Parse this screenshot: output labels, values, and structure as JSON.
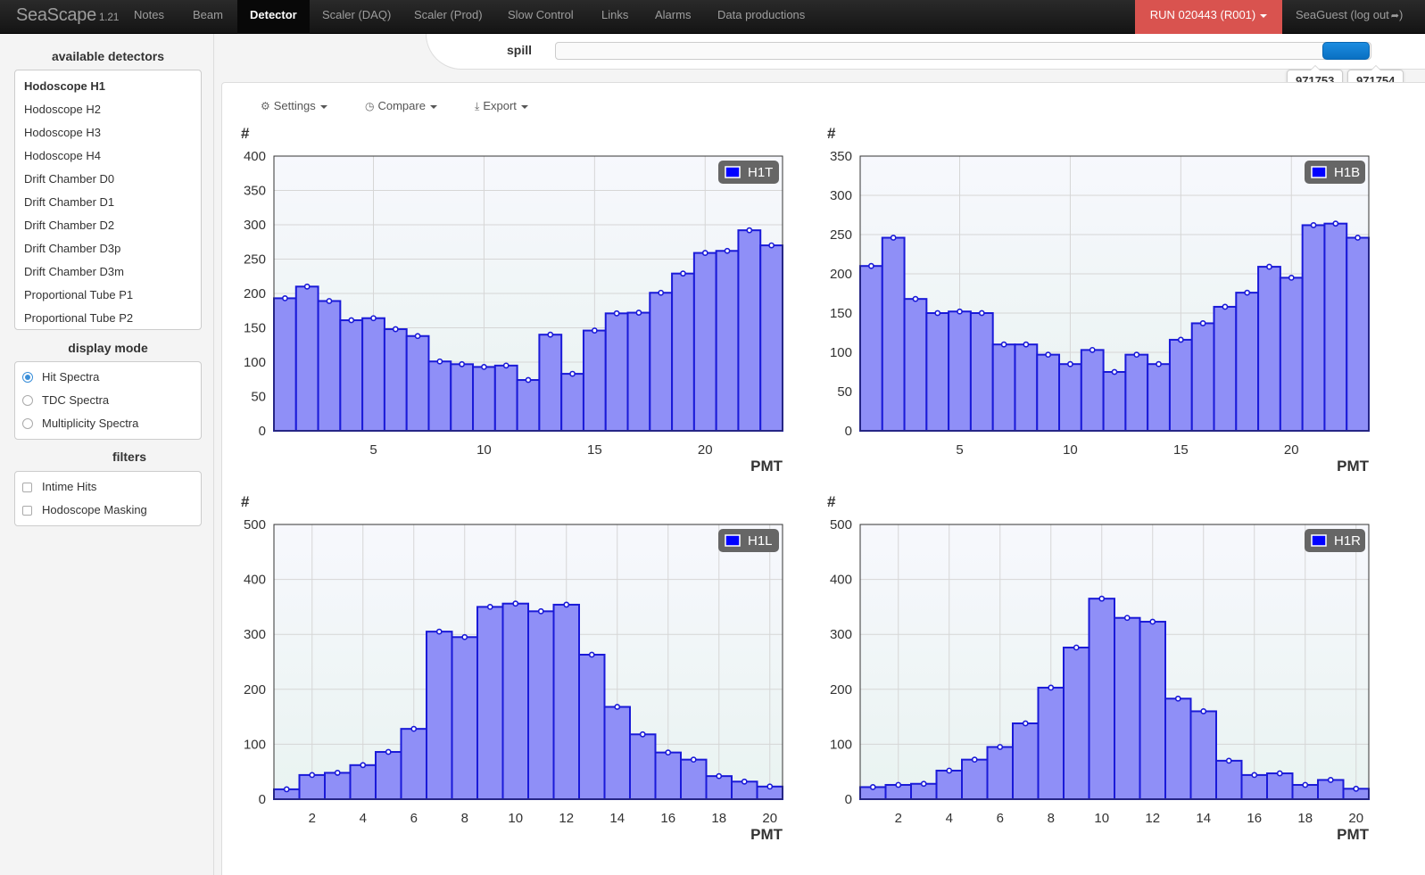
{
  "nav": {
    "brand": "SeaScape",
    "version": "1.21",
    "items": [
      "Notes",
      "Beam",
      "Detector",
      "Scaler (DAQ)",
      "Scaler (Prod)",
      "Slow Control",
      "Links",
      "Alarms",
      "Data productions"
    ],
    "active": "Detector",
    "run": "RUN 020443 (R001)",
    "user": "SeaGuest (log out"
  },
  "sidebar": {
    "detectors_title": "available detectors",
    "detectors": [
      "Hodoscope H1",
      "Hodoscope H2",
      "Hodoscope H3",
      "Hodoscope H4",
      "Drift Chamber D0",
      "Drift Chamber D1",
      "Drift Chamber D2",
      "Drift Chamber D3p",
      "Drift Chamber D3m",
      "Proportional Tube P1",
      "Proportional Tube P2"
    ],
    "mode_title": "display mode",
    "modes": [
      "Hit Spectra",
      "TDC Spectra",
      "Multiplicity Spectra"
    ],
    "filters_title": "filters",
    "filters": [
      "Intime Hits",
      "Hodoscope Masking"
    ]
  },
  "spill": {
    "label": "spill",
    "low": "971753",
    "high": "971754"
  },
  "toolbar": {
    "settings": "Settings",
    "compare": "Compare",
    "export": "Export"
  },
  "colors": {
    "bar_fill": "#8f8ff7",
    "bar_stroke": "#1a1ad8",
    "legend_bg": "#666666",
    "legend_swatch": "#0000ff"
  },
  "chart_data": [
    {
      "type": "bar",
      "series": [
        {
          "name": "H1T",
          "values": [
            193,
            210,
            189,
            161,
            164,
            148,
            138,
            101,
            97,
            93,
            95,
            74,
            140,
            83,
            146,
            171,
            172,
            201,
            229,
            259,
            262,
            292,
            270
          ]
        }
      ],
      "x": [
        1,
        2,
        3,
        4,
        5,
        6,
        7,
        8,
        9,
        10,
        11,
        12,
        13,
        14,
        15,
        16,
        17,
        18,
        19,
        20,
        21,
        22,
        23
      ],
      "xlabel": "PMT",
      "ylabel": "#",
      "ylim": [
        0,
        400
      ],
      "yticks": [
        0,
        50,
        100,
        150,
        200,
        250,
        300,
        350,
        400
      ],
      "xticks": [
        5,
        10,
        15,
        20
      ],
      "grid": true,
      "legend": "top-right"
    },
    {
      "type": "bar",
      "series": [
        {
          "name": "H1B",
          "values": [
            210,
            246,
            168,
            150,
            152,
            150,
            110,
            110,
            97,
            85,
            103,
            75,
            97,
            85,
            116,
            137,
            158,
            176,
            209,
            195,
            262,
            264,
            246
          ]
        }
      ],
      "x": [
        1,
        2,
        3,
        4,
        5,
        6,
        7,
        8,
        9,
        10,
        11,
        12,
        13,
        14,
        15,
        16,
        17,
        18,
        19,
        20,
        21,
        22,
        23
      ],
      "xlabel": "PMT",
      "ylabel": "#",
      "ylim": [
        0,
        350
      ],
      "yticks": [
        0,
        50,
        100,
        150,
        200,
        250,
        300,
        350
      ],
      "xticks": [
        5,
        10,
        15,
        20
      ],
      "grid": true,
      "legend": "top-right"
    },
    {
      "type": "bar",
      "series": [
        {
          "name": "H1L",
          "values": [
            18,
            44,
            48,
            62,
            86,
            128,
            305,
            295,
            350,
            356,
            342,
            354,
            263,
            168,
            118,
            85,
            72,
            42,
            32,
            23
          ]
        }
      ],
      "x": [
        1,
        2,
        3,
        4,
        5,
        6,
        7,
        8,
        9,
        10,
        11,
        12,
        13,
        14,
        15,
        16,
        17,
        18,
        19,
        20
      ],
      "xlabel": "PMT",
      "ylabel": "#",
      "ylim": [
        0,
        500
      ],
      "yticks": [
        0,
        100,
        200,
        300,
        400,
        500
      ],
      "xticks": [
        2,
        4,
        6,
        8,
        10,
        12,
        14,
        16,
        18,
        20
      ],
      "grid": true,
      "legend": "top-right"
    },
    {
      "type": "bar",
      "series": [
        {
          "name": "H1R",
          "values": [
            22,
            26,
            28,
            52,
            72,
            95,
            138,
            203,
            276,
            365,
            330,
            323,
            183,
            160,
            70,
            44,
            47,
            26,
            35,
            19
          ]
        }
      ],
      "x": [
        1,
        2,
        3,
        4,
        5,
        6,
        7,
        8,
        9,
        10,
        11,
        12,
        13,
        14,
        15,
        16,
        17,
        18,
        19,
        20
      ],
      "xlabel": "PMT",
      "ylabel": "#",
      "ylim": [
        0,
        500
      ],
      "yticks": [
        0,
        100,
        200,
        300,
        400,
        500
      ],
      "xticks": [
        2,
        4,
        6,
        8,
        10,
        12,
        14,
        16,
        18,
        20
      ],
      "grid": true,
      "legend": "top-right"
    }
  ]
}
